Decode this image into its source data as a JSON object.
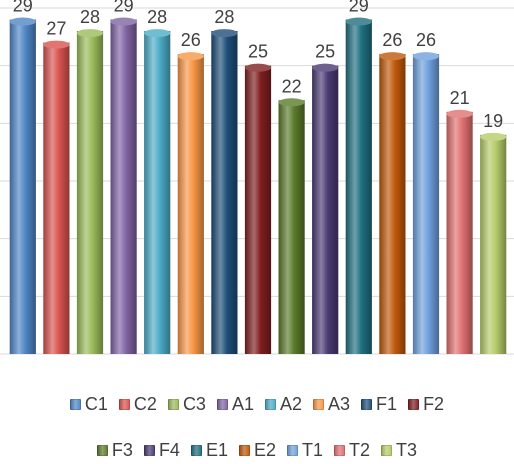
{
  "chart_data": {
    "type": "bar",
    "categories": [
      "C1",
      "C2",
      "C3",
      "A1",
      "A2",
      "A3",
      "F1",
      "F2",
      "F3",
      "F4",
      "E1",
      "E2",
      "T1",
      "T2",
      "T3"
    ],
    "values": [
      29,
      27,
      28,
      29,
      28,
      26,
      28,
      25,
      22,
      25,
      29,
      26,
      26,
      21,
      19
    ],
    "colors": [
      "#4f86c6",
      "#d9534f",
      "#9bbb59",
      "#8064a2",
      "#4bacc6",
      "#f79646",
      "#1f4e79",
      "#7f1f1f",
      "#5a7a2b",
      "#4b3a73",
      "#1f6f7f",
      "#c0580a",
      "#6fa0dc",
      "#e07070",
      "#b5cc6a"
    ],
    "ylim": [
      0,
      30
    ],
    "grid": true,
    "data_labels": true,
    "legend_position": "bottom"
  }
}
